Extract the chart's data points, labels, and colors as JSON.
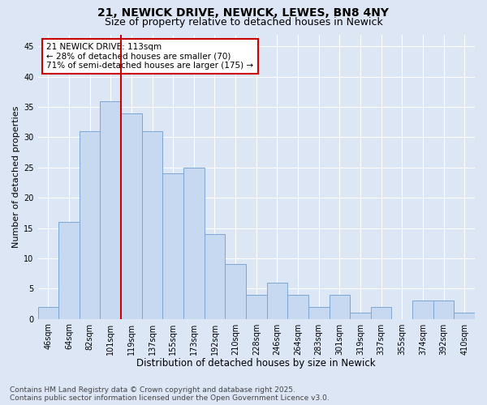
{
  "title1": "21, NEWICK DRIVE, NEWICK, LEWES, BN8 4NY",
  "title2": "Size of property relative to detached houses in Newick",
  "xlabel": "Distribution of detached houses by size in Newick",
  "ylabel": "Number of detached properties",
  "bar_labels": [
    "46sqm",
    "64sqm",
    "82sqm",
    "101sqm",
    "119sqm",
    "137sqm",
    "155sqm",
    "173sqm",
    "192sqm",
    "210sqm",
    "228sqm",
    "246sqm",
    "264sqm",
    "283sqm",
    "301sqm",
    "319sqm",
    "337sqm",
    "355sqm",
    "374sqm",
    "392sqm",
    "410sqm"
  ],
  "bar_values": [
    2,
    16,
    31,
    36,
    34,
    31,
    24,
    25,
    14,
    9,
    4,
    6,
    4,
    2,
    4,
    1,
    2,
    0,
    3,
    3,
    1
  ],
  "bar_color": "#c6d9f1",
  "bar_edge_color": "#7ba7d4",
  "annotation_text": "21 NEWICK DRIVE: 113sqm\n← 28% of detached houses are smaller (70)\n71% of semi-detached houses are larger (175) →",
  "annotation_box_facecolor": "#ffffff",
  "annotation_box_edgecolor": "#cc0000",
  "vline_color": "#cc0000",
  "vline_x_index": 3.5,
  "ylim": [
    0,
    47
  ],
  "yticks": [
    0,
    5,
    10,
    15,
    20,
    25,
    30,
    35,
    40,
    45
  ],
  "bg_color": "#dce6f5",
  "footer": "Contains HM Land Registry data © Crown copyright and database right 2025.\nContains public sector information licensed under the Open Government Licence v3.0.",
  "title1_fontsize": 10,
  "title2_fontsize": 9,
  "xlabel_fontsize": 8.5,
  "ylabel_fontsize": 8,
  "tick_fontsize": 7,
  "annot_fontsize": 7.5,
  "footer_fontsize": 6.5
}
